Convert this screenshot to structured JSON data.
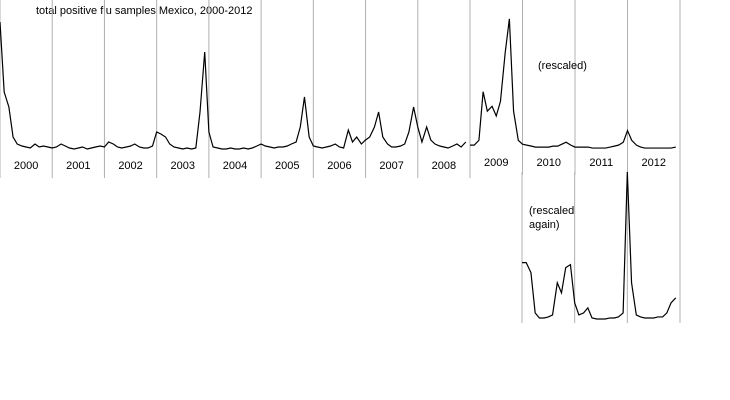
{
  "chart_data": [
    {
      "type": "line",
      "title": "total positive flu samples Mexico, 2000-2012",
      "xlim": [
        2000,
        2009
      ],
      "ylim": [
        0,
        140
      ],
      "xticks": [
        2000,
        2001,
        2002,
        2003,
        2004,
        2005,
        2006,
        2007,
        2008,
        2009
      ],
      "xlabels": [
        2000,
        2001,
        2002,
        2003,
        2004,
        2005,
        2006,
        2007,
        2008
      ],
      "series": [
        {
          "color": "#000000",
          "x": [
            2000,
            2000.08,
            2000.17,
            2000.25,
            2000.33,
            2000.42,
            2000.5,
            2000.58,
            2000.67,
            2000.75,
            2000.83,
            2000.92,
            2001,
            2001.08,
            2001.17,
            2001.25,
            2001.33,
            2001.42,
            2001.5,
            2001.58,
            2001.67,
            2001.75,
            2001.83,
            2001.92,
            2002,
            2002.08,
            2002.17,
            2002.25,
            2002.33,
            2002.42,
            2002.5,
            2002.58,
            2002.67,
            2002.75,
            2002.83,
            2002.92,
            2003,
            2003.08,
            2003.17,
            2003.25,
            2003.33,
            2003.42,
            2003.5,
            2003.58,
            2003.67,
            2003.75,
            2003.83,
            2003.92,
            2004,
            2004.08,
            2004.17,
            2004.25,
            2004.33,
            2004.42,
            2004.5,
            2004.58,
            2004.67,
            2004.75,
            2004.83,
            2004.92,
            2005,
            2005.08,
            2005.17,
            2005.25,
            2005.33,
            2005.42,
            2005.5,
            2005.58,
            2005.67,
            2005.75,
            2005.83,
            2005.92,
            2006,
            2006.08,
            2006.17,
            2006.25,
            2006.33,
            2006.42,
            2006.5,
            2006.58,
            2006.67,
            2006.75,
            2006.83,
            2006.92,
            2007,
            2007.08,
            2007.17,
            2007.25,
            2007.33,
            2007.42,
            2007.5,
            2007.58,
            2007.67,
            2007.75,
            2007.83,
            2007.92,
            2008,
            2008.08,
            2008.17,
            2008.25,
            2008.33,
            2008.42,
            2008.5,
            2008.58,
            2008.67,
            2008.75,
            2008.83,
            2008.92
          ],
          "values": [
            130,
            60,
            45,
            15,
            8,
            6,
            5,
            4,
            8,
            5,
            6,
            5,
            4,
            5,
            8,
            6,
            4,
            3,
            4,
            5,
            3,
            4,
            5,
            6,
            5,
            10,
            8,
            5,
            4,
            5,
            6,
            8,
            5,
            4,
            4,
            6,
            20,
            18,
            15,
            8,
            5,
            4,
            3,
            4,
            3,
            4,
            40,
            100,
            20,
            5,
            4,
            3,
            3,
            4,
            3,
            3,
            4,
            3,
            4,
            6,
            8,
            6,
            5,
            4,
            5,
            5,
            6,
            8,
            10,
            25,
            55,
            15,
            6,
            5,
            4,
            5,
            6,
            8,
            5,
            4,
            22,
            10,
            15,
            8,
            12,
            15,
            25,
            40,
            15,
            8,
            5,
            5,
            6,
            8,
            20,
            45,
            25,
            10,
            25,
            12,
            8,
            6,
            5,
            4,
            6,
            8,
            5,
            10
          ]
        }
      ]
    },
    {
      "type": "line",
      "annotation": "(rescaled)",
      "xlim": [
        2009,
        2013
      ],
      "ylim": [
        0,
        140
      ],
      "xticks": [
        2009,
        2010,
        2011,
        2012,
        2013
      ],
      "xlabels": [
        2009,
        2010,
        2011,
        2012
      ],
      "series": [
        {
          "color": "#000000",
          "x": [
            2009,
            2009.08,
            2009.17,
            2009.25,
            2009.33,
            2009.42,
            2009.5,
            2009.58,
            2009.67,
            2009.75,
            2009.83,
            2009.92,
            2010,
            2010.08,
            2010.17,
            2010.25,
            2010.33,
            2010.42,
            2010.5,
            2010.58,
            2010.67,
            2010.75,
            2010.83,
            2010.92,
            2011,
            2011.08,
            2011.17,
            2011.25,
            2011.33,
            2011.42,
            2011.5,
            2011.58,
            2011.67,
            2011.75,
            2011.83,
            2011.92,
            2012,
            2012.08,
            2012.17,
            2012.25,
            2012.33,
            2012.42,
            2012.5,
            2012.58,
            2012.67,
            2012.75,
            2012.83,
            2012.92
          ],
          "values": [
            5,
            5,
            10,
            60,
            40,
            45,
            35,
            50,
            100,
            135,
            40,
            10,
            6,
            5,
            4,
            3,
            3,
            3,
            3,
            4,
            4,
            6,
            8,
            5,
            3,
            3,
            3,
            3,
            2,
            2,
            2,
            2,
            3,
            4,
            5,
            8,
            20,
            10,
            5,
            3,
            2,
            2,
            2,
            2,
            2,
            2,
            2,
            3
          ]
        }
      ]
    },
    {
      "type": "line",
      "annotation": "(rescaled again)",
      "xlim": [
        2010,
        2013
      ],
      "ylim": [
        0,
        150
      ],
      "xticks": [
        2010,
        2011,
        2012,
        2013
      ],
      "series": [
        {
          "color": "#000000",
          "x": [
            2010,
            2010.08,
            2010.17,
            2010.25,
            2010.33,
            2010.42,
            2010.5,
            2010.58,
            2010.67,
            2010.75,
            2010.83,
            2010.92,
            2011,
            2011.08,
            2011.17,
            2011.25,
            2011.33,
            2011.42,
            2011.5,
            2011.58,
            2011.67,
            2011.75,
            2011.83,
            2011.92,
            2012,
            2012.08,
            2012.17,
            2012.25,
            2012.33,
            2012.42,
            2012.5,
            2012.58,
            2012.67,
            2012.75,
            2012.83,
            2012.92
          ],
          "values": [
            60,
            60,
            50,
            10,
            5,
            5,
            6,
            8,
            40,
            30,
            55,
            58,
            20,
            8,
            10,
            15,
            5,
            4,
            4,
            4,
            5,
            5,
            6,
            10,
            150,
            40,
            8,
            6,
            5,
            5,
            5,
            6,
            6,
            10,
            20,
            25
          ]
        }
      ]
    }
  ]
}
